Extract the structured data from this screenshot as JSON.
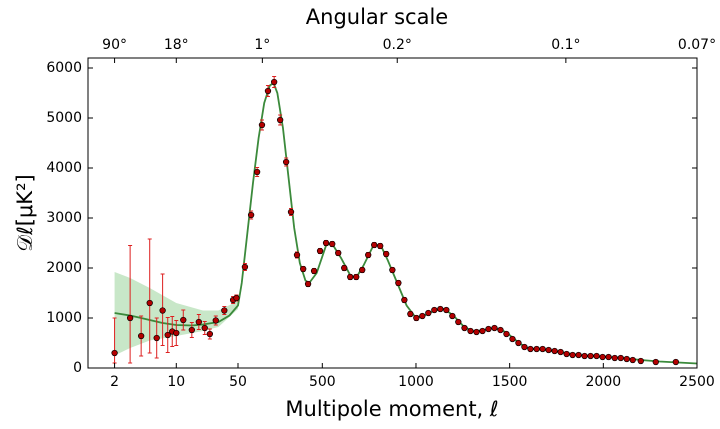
{
  "chart_data": {
    "type": "errorbar",
    "title": "Angular scale",
    "xlabel": "Multipole moment, ℓ",
    "ylabel": "𝒟ℓ[μK²]",
    "xscale": "log-linear",
    "xscale_switch": 50,
    "xlim": [
      1,
      2500
    ],
    "ylim": [
      0,
      6200
    ],
    "xticks": [
      2,
      10,
      50,
      500,
      1000,
      1500,
      2000,
      2500
    ],
    "yticks": [
      0,
      1000,
      2000,
      3000,
      4000,
      5000,
      6000
    ],
    "x2ticks": [
      {
        "value": 2,
        "label": "90°"
      },
      {
        "value": 10,
        "label": "18°"
      },
      {
        "value": 180,
        "label": "1°"
      },
      {
        "value": 900,
        "label": "0.2°"
      },
      {
        "value": 1800,
        "label": "0.1°"
      },
      {
        "value": 2500,
        "label": "0.07°"
      }
    ],
    "band": {
      "color": "#b5dfb5",
      "x": [
        2,
        3,
        5,
        10,
        20,
        30,
        50
      ],
      "lower": [
        250,
        400,
        550,
        640,
        740,
        820,
        1180
      ],
      "upper": [
        1920,
        1800,
        1600,
        1300,
        1150,
        1150,
        1340
      ]
    },
    "model": {
      "color": "#3b8a3b",
      "x": [
        2,
        3,
        4,
        5,
        7,
        10,
        15,
        20,
        30,
        40,
        50,
        70,
        100,
        130,
        160,
        190,
        220,
        240,
        260,
        290,
        320,
        350,
        380,
        410,
        430,
        470,
        520,
        550,
        600,
        650,
        680,
        720,
        770,
        810,
        850,
        900,
        950,
        1000,
        1050,
        1100,
        1150,
        1200,
        1250,
        1300,
        1350,
        1420,
        1480,
        1550,
        1600,
        1700,
        1800,
        1900,
        2000,
        2100,
        2200,
        2300,
        2400,
        2500
      ],
      "values": [
        1100,
        1050,
        1000,
        960,
        900,
        860,
        850,
        870,
        920,
        1050,
        1250,
        1700,
        2700,
        3700,
        4600,
        5300,
        5650,
        5700,
        5500,
        4800,
        3800,
        2800,
        2100,
        1750,
        1700,
        1900,
        2450,
        2500,
        2200,
        1850,
        1800,
        2050,
        2430,
        2470,
        2150,
        1700,
        1250,
        1000,
        1060,
        1150,
        1180,
        1050,
        850,
        730,
        750,
        800,
        720,
        500,
        390,
        350,
        300,
        240,
        220,
        200,
        160,
        130,
        110,
        90
      ]
    },
    "series": [
      {
        "color": "#b30000",
        "error_color": "#dd2020",
        "x": [
          2,
          3,
          4,
          5,
          6,
          7,
          8,
          9,
          10,
          12,
          15,
          18,
          21,
          24,
          28,
          35,
          44,
          48
        ],
        "values": [
          300,
          1000,
          640,
          1300,
          600,
          1150,
          660,
          730,
          700,
          960,
          760,
          920,
          800,
          680,
          950,
          1150,
          1360,
          1400
        ],
        "errors_minus": [
          200,
          900,
          400,
          1000,
          400,
          700,
          350,
          300,
          250,
          200,
          150,
          150,
          130,
          100,
          90,
          80,
          70,
          60
        ],
        "errors_plus": [
          700,
          1450,
          400,
          1280,
          400,
          730,
          350,
          300,
          250,
          200,
          150,
          150,
          130,
          100,
          90,
          80,
          70,
          60
        ]
      },
      {
        "color": "#b30000",
        "error_color": "#dd2020",
        "x": [
          87,
          120,
          152,
          178,
          210,
          243,
          275,
          307,
          333,
          365,
          398,
          424,
          456,
          488,
          520,
          553,
          585,
          617,
          649,
          681,
          713,
          745,
          777,
          809,
          841,
          874,
          906,
          938,
          970,
          1002,
          1034,
          1066,
          1098,
          1130,
          1162,
          1194,
          1226,
          1259,
          1291,
          1323,
          1355,
          1387,
          1419,
          1451,
          1483,
          1515,
          1547,
          1579,
          1611,
          1644,
          1676,
          1708,
          1740,
          1772,
          1804,
          1836,
          1868,
          1900,
          1932,
          1964,
          1996,
          2028,
          2061,
          2093,
          2125,
          2157,
          2200,
          2280,
          2387
        ],
        "values": [
          2020,
          3060,
          3920,
          4860,
          5540,
          5720,
          4960,
          4120,
          3120,
          2260,
          1980,
          1680,
          1940,
          2340,
          2500,
          2480,
          2300,
          2000,
          1820,
          1820,
          1960,
          2260,
          2460,
          2440,
          2280,
          1960,
          1700,
          1360,
          1080,
          1000,
          1040,
          1100,
          1160,
          1180,
          1160,
          1040,
          920,
          800,
          740,
          720,
          740,
          780,
          800,
          760,
          680,
          580,
          500,
          420,
          380,
          380,
          380,
          360,
          340,
          320,
          280,
          260,
          260,
          240,
          240,
          240,
          220,
          220,
          200,
          200,
          180,
          160,
          140,
          120,
          120
        ],
        "errors": [
          70,
          80,
          90,
          100,
          110,
          110,
          100,
          80,
          70,
          60,
          50,
          50,
          50,
          50,
          50,
          50,
          50,
          50,
          50,
          50,
          50,
          50,
          50,
          50,
          50,
          50,
          50,
          50,
          50,
          50,
          40,
          40,
          40,
          40,
          40,
          40,
          40,
          40,
          40,
          40,
          40,
          40,
          40,
          40,
          40,
          40,
          40,
          40,
          40,
          40,
          30,
          30,
          30,
          30,
          30,
          30,
          30,
          30,
          30,
          30,
          30,
          30,
          30,
          30,
          30,
          30,
          30,
          30,
          30
        ]
      }
    ]
  }
}
